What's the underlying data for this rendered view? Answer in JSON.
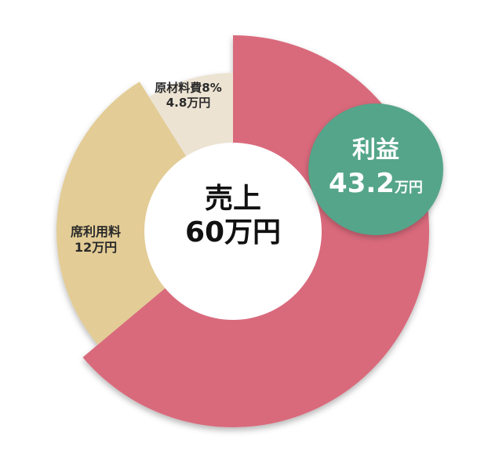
{
  "chart_data": {
    "type": "pie",
    "donut": true,
    "center_label": {
      "line1": "売上",
      "line2": "60万円"
    },
    "total": 60,
    "unit": "万円",
    "slices": [
      {
        "name": "利益",
        "value": 43.2,
        "label": "43.2",
        "unit": "万円",
        "color": "#d96b7c"
      },
      {
        "name": "席利用料",
        "value": 12,
        "label": "12万円",
        "color": "#e3cc95"
      },
      {
        "name": "原材料費8%",
        "value": 4.8,
        "label": "4.8万円",
        "percent": 8,
        "color": "#ece3d3"
      }
    ],
    "highlight_color": "#55a58a"
  }
}
